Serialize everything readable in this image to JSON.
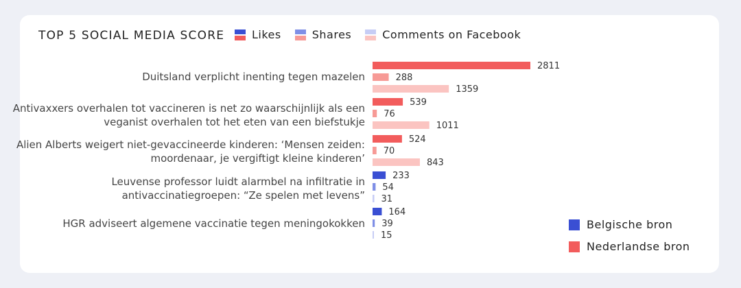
{
  "title": "TOP 5 SOCIAL MEDIA SCORE",
  "colors": {
    "be": [
      "#3a4fd3",
      "#7f8fe6",
      "#c7cdf5"
    ],
    "nl": [
      "#f25c5c",
      "#f79a96",
      "#fbc4c1"
    ]
  },
  "legend_metrics": [
    {
      "label": "Likes"
    },
    {
      "label": "Shares"
    },
    {
      "label": "Comments on Facebook"
    }
  ],
  "legend_sources": [
    {
      "label": "Belgische bron",
      "color": "#3a4fd3"
    },
    {
      "label": "Nederlandse bron",
      "color": "#f25c5c"
    }
  ],
  "chart_data": {
    "type": "bar",
    "orientation": "horizontal",
    "title": "TOP 5 SOCIAL MEDIA SCORE",
    "metrics": [
      "Likes",
      "Shares",
      "Comments on Facebook"
    ],
    "categories": [
      {
        "label": "Duitsland verplicht inenting tegen mazelen",
        "source": "nl",
        "values": [
          2811,
          288,
          1359
        ]
      },
      {
        "label": "Antivaxxers overhalen tot vaccineren is net zo waarschijnlijk als een veganist overhalen tot het eten van een biefstukje",
        "source": "nl",
        "values": [
          539,
          76,
          1011
        ]
      },
      {
        "label": "Alien Alberts weigert niet-gevaccineerde kinderen: ‘Mensen zeiden: moordenaar, je vergiftigt kleine kinderen’",
        "source": "nl",
        "values": [
          524,
          70,
          843
        ]
      },
      {
        "label": "Leuvense professor luidt alarmbel na infiltratie in antivaccinatiegroepen: “Ze spelen met levens”",
        "source": "be",
        "values": [
          233,
          54,
          31
        ]
      },
      {
        "label": "HGR adviseert algemene vaccinatie tegen meningokokken",
        "source": "be",
        "values": [
          164,
          39,
          15
        ]
      }
    ]
  }
}
